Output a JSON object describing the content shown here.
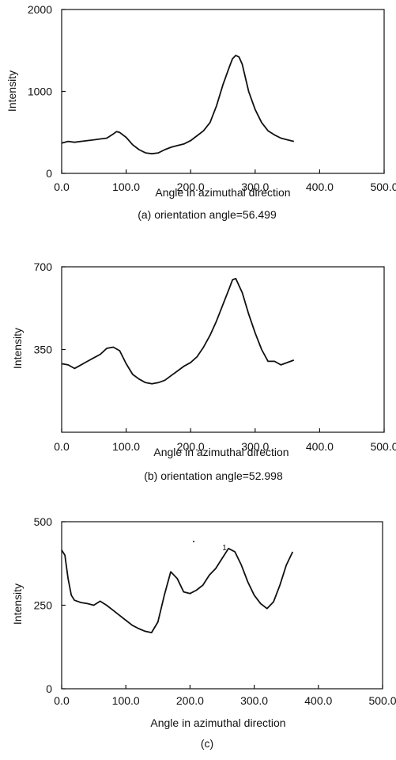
{
  "chart_data": [
    {
      "type": "line",
      "ylabel": "Intensity",
      "xlabel": "Angle in azimuthal direction",
      "caption": "(a) orientation angle=56.499",
      "xlim": [
        0,
        500
      ],
      "ylim": [
        0,
        2000
      ],
      "xticks": [
        "0.0",
        "100.0",
        "200.0",
        "300.0",
        "400.0",
        "500.0"
      ],
      "yticks": [
        "0",
        "1000",
        "2000"
      ],
      "ytick_values": [
        0,
        1000,
        2000
      ],
      "series": [
        {
          "x": [
            0,
            10,
            20,
            30,
            40,
            50,
            60,
            70,
            80,
            85,
            90,
            100,
            110,
            120,
            130,
            140,
            150,
            160,
            170,
            180,
            190,
            200,
            210,
            220,
            230,
            240,
            250,
            260,
            265,
            270,
            275,
            280,
            290,
            300,
            310,
            320,
            330,
            340,
            350,
            360
          ],
          "y": [
            370,
            390,
            380,
            390,
            400,
            410,
            420,
            430,
            480,
            510,
            500,
            440,
            350,
            290,
            250,
            240,
            250,
            290,
            320,
            340,
            360,
            400,
            460,
            520,
            620,
            820,
            1080,
            1300,
            1400,
            1440,
            1420,
            1330,
            1000,
            780,
            620,
            520,
            470,
            430,
            410,
            390
          ]
        }
      ]
    },
    {
      "type": "line",
      "ylabel": "Intensity",
      "xlabel": "Angle in azimuthal direction",
      "caption": "(b) orientation angle=52.998",
      "xlim": [
        0,
        500
      ],
      "ylim": [
        0,
        700
      ],
      "xticks": [
        "0.0",
        "100.0",
        "200.0",
        "300.0",
        "400.0",
        "500.0"
      ],
      "yticks": [
        "350",
        "700"
      ],
      "ytick_values": [
        350,
        700
      ],
      "series": [
        {
          "x": [
            0,
            10,
            20,
            30,
            40,
            50,
            60,
            70,
            80,
            90,
            100,
            110,
            120,
            130,
            140,
            150,
            160,
            170,
            180,
            190,
            200,
            210,
            220,
            230,
            240,
            250,
            260,
            265,
            270,
            280,
            290,
            300,
            310,
            320,
            330,
            340,
            350,
            360
          ],
          "y": [
            290,
            285,
            270,
            285,
            300,
            315,
            330,
            355,
            360,
            345,
            290,
            245,
            225,
            210,
            205,
            210,
            220,
            240,
            260,
            280,
            295,
            320,
            360,
            410,
            470,
            540,
            610,
            645,
            650,
            590,
            500,
            420,
            350,
            300,
            300,
            285,
            295,
            305
          ]
        }
      ]
    },
    {
      "type": "line",
      "ylabel": "Intensity",
      "xlabel": "Angle in azimuthal direction",
      "caption": "(c)",
      "annotation": "1",
      "xlim": [
        0,
        500
      ],
      "ylim": [
        0,
        500
      ],
      "xticks": [
        "0.0",
        "100.0",
        "200.0",
        "300.0",
        "400.0",
        "500.0"
      ],
      "yticks": [
        "0",
        "250",
        "500"
      ],
      "ytick_values": [
        0,
        250,
        500
      ],
      "series": [
        {
          "x": [
            0,
            5,
            10,
            15,
            20,
            30,
            40,
            50,
            60,
            70,
            80,
            90,
            100,
            110,
            120,
            130,
            140,
            150,
            160,
            170,
            180,
            190,
            200,
            210,
            220,
            230,
            240,
            250,
            260,
            270,
            280,
            290,
            300,
            310,
            320,
            330,
            340,
            350,
            360
          ],
          "y": [
            415,
            400,
            330,
            280,
            265,
            258,
            255,
            250,
            262,
            250,
            235,
            220,
            205,
            190,
            180,
            172,
            168,
            200,
            280,
            350,
            330,
            290,
            285,
            295,
            310,
            340,
            360,
            390,
            420,
            410,
            370,
            320,
            280,
            255,
            240,
            260,
            310,
            370,
            410
          ]
        }
      ]
    }
  ]
}
